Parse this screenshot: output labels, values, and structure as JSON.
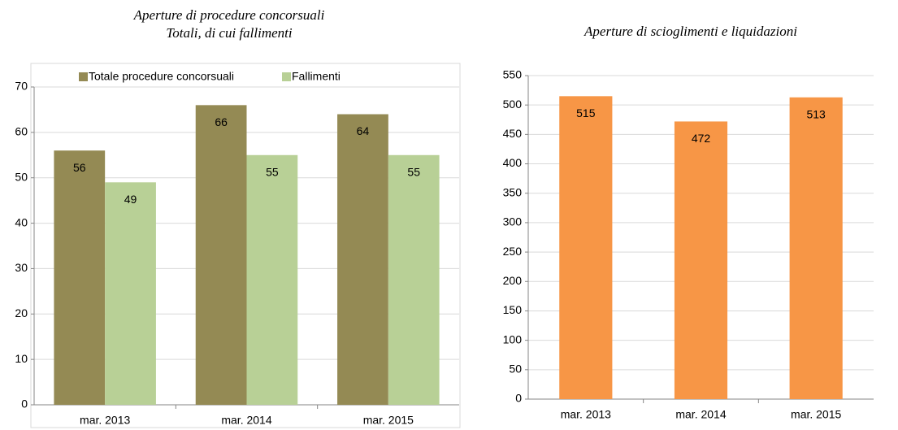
{
  "chart_data": [
    {
      "type": "bar",
      "title": "Aperture di procedure concorsuali",
      "subtitle": "Totali, di cui fallimenti",
      "categories": [
        "mar. 2013",
        "mar. 2014",
        "mar. 2015"
      ],
      "series": [
        {
          "name": "Totale procedure concorsuali",
          "color": "#948a54",
          "values": [
            56,
            66,
            64
          ]
        },
        {
          "name": "Fallimenti",
          "color": "#b8d096",
          "values": [
            49,
            55,
            55
          ]
        }
      ],
      "ylim": [
        0,
        70
      ],
      "yticks": [
        0,
        10,
        20,
        30,
        40,
        50,
        60,
        70
      ],
      "grid": true,
      "legend": "top"
    },
    {
      "type": "bar",
      "title": "Aperture di scioglimenti e liquidazioni",
      "categories": [
        "mar. 2013",
        "mar. 2014",
        "mar. 2015"
      ],
      "values": [
        515,
        472,
        513
      ],
      "color": "#f79646",
      "ylim": [
        0,
        550
      ],
      "yticks": [
        0,
        50,
        100,
        150,
        200,
        250,
        300,
        350,
        400,
        450,
        500,
        550
      ],
      "grid": true
    }
  ]
}
